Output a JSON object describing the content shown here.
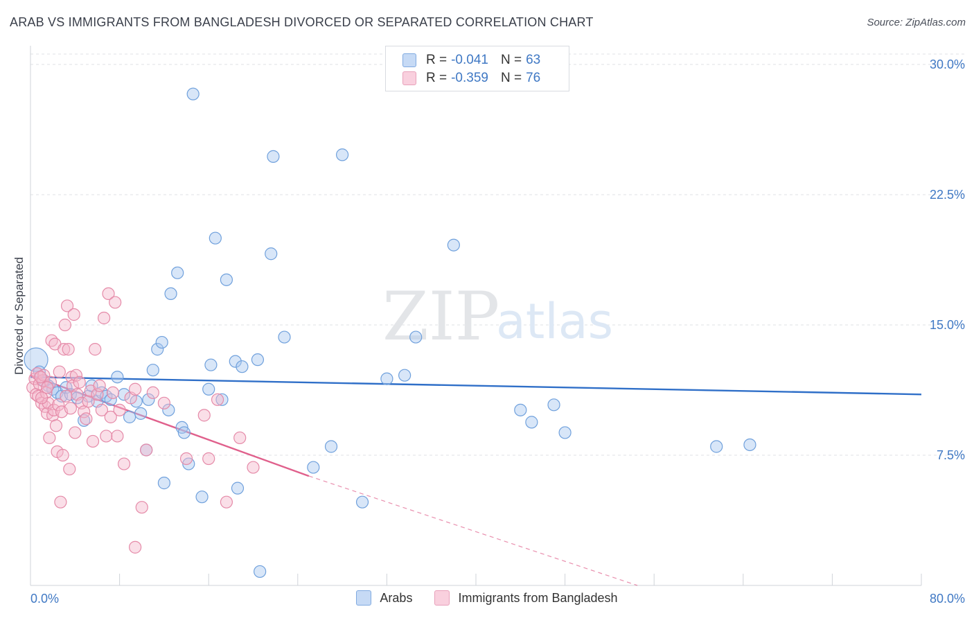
{
  "header": {
    "title": "ARAB VS IMMIGRANTS FROM BANGLADESH DIVORCED OR SEPARATED CORRELATION CHART",
    "source": "Source: ZipAtlas.com"
  },
  "watermark": {
    "zip": "ZIP",
    "atlas": "atlas"
  },
  "legend": {
    "rows": [
      {
        "r_label": "R =",
        "r_value": "-0.041",
        "n_label": "N =",
        "n_value": "63",
        "color": "#a9c8f0"
      },
      {
        "r_label": "R =",
        "r_value": "-0.359",
        "n_label": "N =",
        "n_value": "76",
        "color": "#f5b8cc"
      }
    ]
  },
  "chart_data": {
    "type": "scatter",
    "title": "ARAB VS IMMIGRANTS FROM BANGLADESH DIVORCED OR SEPARATED CORRELATION CHART",
    "xlabel": "",
    "ylabel": "Divorced or Separated",
    "xlim": [
      0,
      80
    ],
    "ylim": [
      0,
      30.6
    ],
    "x_tick_labels": [
      "0.0%",
      "80.0%"
    ],
    "y_ticks": [
      7.5,
      15.0,
      22.5,
      30.0
    ],
    "y_tick_labels": [
      "7.5%",
      "15.0%",
      "22.5%",
      "30.0%"
    ],
    "grid": "horizontal dashed",
    "legend_placement": "top-center",
    "series": [
      {
        "name": "Arabs",
        "color": "#a9c8f0",
        "stroke": "#6fa0dc",
        "trend": {
          "x": [
            0,
            80
          ],
          "y": [
            12.0,
            11.0
          ],
          "color": "#2f6fc8"
        },
        "points": [
          [
            0.5,
            13.0
          ],
          [
            0.8,
            12.3
          ],
          [
            1.2,
            11.8
          ],
          [
            1.6,
            11.5
          ],
          [
            2.0,
            11.3
          ],
          [
            2.4,
            11.1
          ],
          [
            2.8,
            10.9
          ],
          [
            3.2,
            11.4
          ],
          [
            3.6,
            11.0
          ],
          [
            4.2,
            10.8
          ],
          [
            4.8,
            9.5
          ],
          [
            5.2,
            10.9
          ],
          [
            5.5,
            11.5
          ],
          [
            6.0,
            10.6
          ],
          [
            6.4,
            11.1
          ],
          [
            6.8,
            10.9
          ],
          [
            7.2,
            10.7
          ],
          [
            7.8,
            12.0
          ],
          [
            8.4,
            11.0
          ],
          [
            8.9,
            9.7
          ],
          [
            9.5,
            10.6
          ],
          [
            9.9,
            9.9
          ],
          [
            10.4,
            7.8
          ],
          [
            10.6,
            10.7
          ],
          [
            11.0,
            12.4
          ],
          [
            11.4,
            13.6
          ],
          [
            11.8,
            14.0
          ],
          [
            12.4,
            10.1
          ],
          [
            12.6,
            16.8
          ],
          [
            13.2,
            18.0
          ],
          [
            13.6,
            9.1
          ],
          [
            13.8,
            8.8
          ],
          [
            14.2,
            7.0
          ],
          [
            14.6,
            28.3
          ],
          [
            15.4,
            5.1
          ],
          [
            16.0,
            11.3
          ],
          [
            16.2,
            12.7
          ],
          [
            16.6,
            20.0
          ],
          [
            17.2,
            10.7
          ],
          [
            17.6,
            17.6
          ],
          [
            18.4,
            12.9
          ],
          [
            18.6,
            5.6
          ],
          [
            19.0,
            12.6
          ],
          [
            20.4,
            13.0
          ],
          [
            20.6,
            0.8
          ],
          [
            21.6,
            19.1
          ],
          [
            21.8,
            24.7
          ],
          [
            25.4,
            6.8
          ],
          [
            27.0,
            8.0
          ],
          [
            28.0,
            24.8
          ],
          [
            29.8,
            4.8
          ],
          [
            32.0,
            11.9
          ],
          [
            33.6,
            12.1
          ],
          [
            34.6,
            14.3
          ],
          [
            38.0,
            19.6
          ],
          [
            44.0,
            10.1
          ],
          [
            45.0,
            9.4
          ],
          [
            47.0,
            10.4
          ],
          [
            48.0,
            8.8
          ],
          [
            61.6,
            8.0
          ],
          [
            64.6,
            8.1
          ],
          [
            22.8,
            14.3
          ],
          [
            12.0,
            5.9
          ]
        ]
      },
      {
        "name": "Immigrants from Bangladesh",
        "color": "#f5b8cc",
        "stroke": "#e58aa8",
        "trend": {
          "x": [
            0,
            25
          ],
          "y": [
            12.1,
            6.3
          ],
          "color": "#e0608c"
        },
        "trend_dashed": {
          "x": [
            25,
            54.5
          ],
          "y": [
            6.3,
            0.0
          ]
        },
        "points": [
          [
            0.2,
            11.4
          ],
          [
            0.4,
            11.9
          ],
          [
            0.5,
            11.0
          ],
          [
            0.6,
            12.2
          ],
          [
            0.7,
            10.9
          ],
          [
            0.8,
            11.6
          ],
          [
            1.0,
            10.5
          ],
          [
            1.1,
            11.8
          ],
          [
            1.2,
            12.1
          ],
          [
            1.3,
            10.3
          ],
          [
            1.4,
            11.1
          ],
          [
            1.5,
            9.9
          ],
          [
            1.6,
            10.5
          ],
          [
            1.7,
            8.5
          ],
          [
            1.8,
            11.7
          ],
          [
            1.9,
            14.1
          ],
          [
            2.0,
            9.8
          ],
          [
            2.1,
            10.1
          ],
          [
            2.2,
            13.9
          ],
          [
            2.3,
            9.2
          ],
          [
            2.4,
            7.7
          ],
          [
            2.5,
            10.4
          ],
          [
            2.6,
            12.3
          ],
          [
            2.7,
            4.8
          ],
          [
            2.8,
            10.0
          ],
          [
            2.9,
            7.5
          ],
          [
            3.0,
            13.6
          ],
          [
            3.1,
            15.0
          ],
          [
            3.2,
            10.9
          ],
          [
            3.3,
            16.1
          ],
          [
            3.4,
            13.6
          ],
          [
            3.5,
            6.7
          ],
          [
            3.6,
            10.2
          ],
          [
            3.7,
            12.0
          ],
          [
            3.8,
            11.5
          ],
          [
            3.9,
            15.6
          ],
          [
            4.0,
            8.8
          ],
          [
            4.1,
            12.1
          ],
          [
            4.2,
            11.0
          ],
          [
            4.4,
            11.7
          ],
          [
            4.6,
            10.5
          ],
          [
            4.8,
            10.0
          ],
          [
            5.0,
            9.6
          ],
          [
            5.2,
            10.6
          ],
          [
            5.4,
            11.2
          ],
          [
            5.6,
            8.3
          ],
          [
            5.8,
            13.6
          ],
          [
            6.0,
            11.0
          ],
          [
            6.2,
            11.5
          ],
          [
            6.4,
            10.1
          ],
          [
            6.6,
            15.4
          ],
          [
            6.8,
            8.6
          ],
          [
            7.0,
            16.8
          ],
          [
            7.2,
            9.7
          ],
          [
            7.4,
            11.1
          ],
          [
            7.6,
            16.3
          ],
          [
            7.8,
            8.6
          ],
          [
            8.0,
            10.1
          ],
          [
            8.4,
            7.0
          ],
          [
            9.0,
            10.8
          ],
          [
            9.4,
            11.3
          ],
          [
            10.0,
            4.5
          ],
          [
            10.4,
            7.8
          ],
          [
            11.0,
            11.1
          ],
          [
            12.0,
            10.5
          ],
          [
            14.0,
            7.3
          ],
          [
            15.6,
            9.8
          ],
          [
            16.0,
            7.3
          ],
          [
            16.8,
            10.7
          ],
          [
            17.6,
            4.8
          ],
          [
            18.8,
            8.5
          ],
          [
            20.0,
            6.8
          ],
          [
            9.4,
            2.2
          ],
          [
            1.0,
            10.8
          ],
          [
            0.9,
            12.0
          ],
          [
            1.5,
            11.4
          ]
        ]
      }
    ]
  }
}
